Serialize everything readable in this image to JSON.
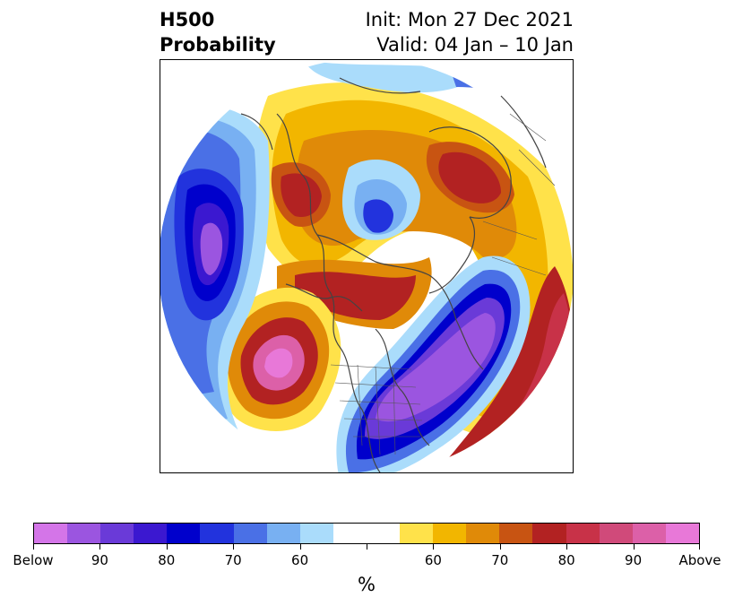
{
  "title": {
    "left_line1": "H500",
    "left_line2": "Probability",
    "right_line1": "Init: Mon 27 Dec 2021",
    "right_line2": "Valid: 04 Jan – 10 Jan"
  },
  "colorbar": {
    "colors": [
      "#d475e8",
      "#9b55e0",
      "#6a3ad8",
      "#3b18d0",
      "#0000cc",
      "#2233dd",
      "#4a70e6",
      "#78b0f2",
      "#aadcfb",
      "#ffffff",
      "#ffffff",
      "#ffe24a",
      "#f2b600",
      "#e08a08",
      "#c85412",
      "#b22222",
      "#c83248",
      "#d04a7a",
      "#dc60a8",
      "#e878d8"
    ],
    "tick_labels": [
      "Below",
      "90",
      "80",
      "70",
      "60",
      "",
      "60",
      "70",
      "80",
      "90",
      "Above"
    ],
    "unit": "%"
  },
  "map_style": {
    "coast_color": "#444444",
    "land_outline_color": "#555555"
  }
}
